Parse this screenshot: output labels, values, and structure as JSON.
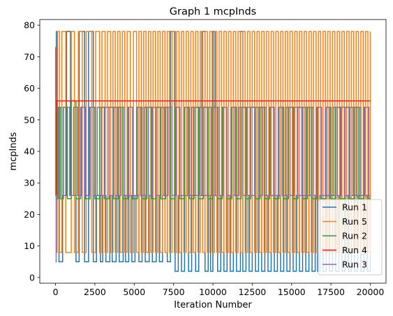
{
  "chart_data": {
    "type": "line",
    "title": "Graph 1 mcpInds",
    "xlabel": "Iteration Number",
    "ylabel": "mcpInds",
    "xlim": [
      -1000,
      21000
    ],
    "ylim": [
      -1.8,
      81.8
    ],
    "xticks": [
      0,
      2500,
      5000,
      7500,
      10000,
      12500,
      15000,
      17500,
      20000
    ],
    "xtick_labels": [
      "0",
      "2500",
      "5000",
      "7500",
      "10000",
      "12500",
      "15000",
      "17500",
      "20000"
    ],
    "yticks": [
      0,
      10,
      20,
      30,
      40,
      50,
      60,
      70,
      80
    ],
    "ytick_labels": [
      "0",
      "10",
      "20",
      "30",
      "40",
      "50",
      "60",
      "70",
      "80"
    ],
    "legend_position": "lower right",
    "grid": false,
    "series": [
      {
        "name": "Run 1",
        "color": "#1f77b4",
        "step_x": [
          0,
          50,
          120,
          220,
          450,
          700,
          950,
          1300,
          1500,
          1850,
          2100,
          2400,
          2600,
          2850,
          3000,
          3200,
          3450,
          3600,
          3850,
          4050,
          4300,
          4450,
          4650,
          4850,
          5050,
          5300,
          5500,
          5700,
          5950,
          6150,
          6400,
          6600,
          6800,
          7100,
          7300,
          7600,
          7800,
          8000,
          8200,
          8450,
          8650,
          8900,
          9100,
          9300,
          9500,
          9700,
          9850,
          10000,
          10150,
          10300,
          10500,
          10700,
          10900,
          11100,
          11300,
          11500,
          11750,
          11900,
          12100,
          12300,
          12500,
          12700,
          12900,
          13100,
          13300,
          13500,
          13700,
          13900,
          14100,
          14300,
          14500,
          14700,
          14900,
          15100,
          15300,
          15500,
          15700,
          15900,
          16100,
          16300,
          16500,
          16650,
          16800,
          17000,
          17200,
          17400,
          17600,
          17800,
          18000,
          18200,
          18400,
          18600,
          18800,
          19000,
          19200,
          19400,
          19600,
          19800,
          20000
        ],
        "step_y": [
          26,
          78,
          26,
          5,
          26,
          78,
          26,
          5,
          78,
          5,
          78,
          5,
          26,
          5,
          26,
          5,
          26,
          5,
          26,
          5,
          26,
          5,
          26,
          5,
          26,
          5,
          26,
          5,
          26,
          5,
          26,
          5,
          26,
          5,
          78,
          2,
          26,
          2,
          26,
          2,
          26,
          2,
          26,
          78,
          2,
          26,
          2,
          78,
          26,
          2,
          26,
          2,
          26,
          2,
          26,
          2,
          78,
          2,
          26,
          2,
          26,
          2,
          26,
          2,
          26,
          2,
          26,
          2,
          26,
          2,
          26,
          2,
          26,
          2,
          26,
          2,
          26,
          2,
          26,
          2,
          26,
          2,
          26,
          2,
          26,
          2,
          26,
          2,
          26,
          2,
          26,
          2,
          26,
          2,
          26,
          2,
          26,
          2,
          26
        ]
      },
      {
        "name": "Run 5",
        "color": "#ff7f0e",
        "step_x": [
          0,
          100,
          250,
          400,
          650,
          1000,
          1200,
          1450,
          1700,
          1950,
          2300,
          2550,
          2800,
          2950,
          3150,
          3300,
          3500,
          3650,
          3800,
          3950,
          4100,
          4250,
          4400,
          4550,
          4750,
          4950,
          5150,
          5300,
          5450,
          5600,
          5750,
          5900,
          6050,
          6200,
          6350,
          6500,
          6650,
          6800,
          6950,
          7100,
          7250,
          7400,
          7550,
          7700,
          7850,
          8000,
          8150,
          8300,
          8450,
          8600,
          8750,
          8900,
          9050,
          9200,
          9350,
          9500,
          9650,
          9800,
          9950,
          10100,
          10250,
          10400,
          10550,
          10700,
          10850,
          11000,
          11150,
          11300,
          11450,
          11600,
          11750,
          11900,
          12050,
          12200,
          12350,
          12500,
          12650,
          12800,
          12950,
          13100,
          13250,
          13400,
          13550,
          13700,
          13850,
          14000,
          14150,
          14300,
          14450,
          14600,
          14750,
          14900,
          15050,
          15200,
          15350,
          15500,
          15650,
          15800,
          15950,
          16100,
          16250,
          16400,
          16550,
          16700,
          16850,
          17000,
          17150,
          17300,
          17450,
          17600,
          17750,
          17900,
          18050,
          18200,
          18350,
          18500,
          18650,
          18800,
          18950,
          19100,
          19250,
          19400,
          19550,
          19700,
          19850,
          20000
        ],
        "step_y": [
          8,
          78,
          8,
          78,
          8,
          78,
          8,
          78,
          8,
          78,
          8,
          78,
          8,
          78,
          8,
          78,
          8,
          78,
          8,
          78,
          8,
          78,
          8,
          78,
          8,
          78,
          8,
          78,
          8,
          78,
          8,
          78,
          8,
          78,
          8,
          78,
          8,
          78,
          8,
          78,
          8,
          78,
          8,
          78,
          8,
          78,
          8,
          78,
          8,
          78,
          8,
          78,
          8,
          78,
          8,
          78,
          8,
          78,
          8,
          78,
          8,
          78,
          8,
          78,
          8,
          78,
          8,
          78,
          8,
          78,
          8,
          78,
          8,
          78,
          8,
          78,
          8,
          78,
          8,
          78,
          8,
          78,
          8,
          78,
          8,
          78,
          8,
          78,
          8,
          78,
          8,
          78,
          8,
          78,
          8,
          78,
          8,
          78,
          8,
          78,
          8,
          78,
          8,
          78,
          8,
          78,
          8,
          78,
          8,
          78,
          8,
          78,
          8,
          78,
          8,
          78,
          8,
          78,
          8,
          78,
          8,
          78,
          8,
          78,
          8,
          78
        ]
      },
      {
        "name": "Run 2",
        "color": "#2ca02c",
        "step_x": [
          0,
          150,
          300,
          500,
          750,
          1000,
          1300,
          1600,
          1900,
          2200,
          2500,
          2800,
          3100,
          3400,
          3700,
          4000,
          4300,
          4600,
          4900,
          5200,
          5500,
          5800,
          6100,
          6400,
          6700,
          7000,
          7300,
          7600,
          7900,
          8200,
          8500,
          8800,
          9100,
          9400,
          9700,
          10000,
          10300,
          10600,
          10900,
          11200,
          11500,
          11800,
          12100,
          12400,
          12700,
          13000,
          13300,
          13600,
          13900,
          14200,
          14500,
          14800,
          15100,
          15400,
          15700,
          16000,
          16300,
          16600,
          16900,
          17200,
          17500,
          17800,
          18100,
          18400,
          18700,
          19000,
          19300,
          19600,
          19900,
          20000
        ],
        "step_y": [
          25,
          54,
          25,
          54,
          25,
          56,
          25,
          54,
          25,
          54,
          25,
          54,
          25,
          54,
          25,
          54,
          25,
          54,
          25,
          54,
          25,
          54,
          25,
          54,
          25,
          54,
          25,
          54,
          25,
          54,
          25,
          54,
          25,
          54,
          25,
          54,
          25,
          54,
          25,
          54,
          25,
          54,
          25,
          54,
          25,
          54,
          25,
          54,
          25,
          54,
          25,
          54,
          25,
          54,
          25,
          54,
          25,
          54,
          25,
          54,
          25,
          54,
          25,
          54,
          25,
          54,
          25,
          54,
          25,
          25
        ]
      },
      {
        "name": "Run 4",
        "color": "#d62728",
        "step_x": [
          0,
          20,
          60,
          20000
        ],
        "step_y": [
          73,
          26,
          56,
          56
        ]
      },
      {
        "name": "Run 3",
        "color": "#9467bd",
        "step_x": [
          0,
          40,
          200,
          400,
          650,
          900,
          1150,
          1400,
          1650,
          1900,
          2150,
          2400,
          2650,
          2900,
          3150,
          3400,
          3650,
          3900,
          4150,
          4400,
          4650,
          4900,
          5150,
          5400,
          5650,
          5900,
          6150,
          6400,
          6650,
          6900,
          7150,
          7400,
          7650,
          7900,
          8150,
          8400,
          8650,
          8900,
          9150,
          9400,
          9650,
          9900,
          10150,
          10400,
          10650,
          10900,
          11150,
          11400,
          11650,
          11900,
          12150,
          12400,
          12650,
          12900,
          13150,
          13400,
          13650,
          13900,
          14150,
          14400,
          14650,
          14900,
          15150,
          15400,
          15650,
          15900,
          16150,
          16400,
          16650,
          16900,
          17150,
          17400,
          17650,
          17900,
          18150,
          18400,
          18650,
          18900,
          19150,
          19400,
          19650,
          19900,
          20000
        ],
        "step_y": [
          5,
          26,
          54,
          26,
          54,
          26,
          54,
          26,
          54,
          26,
          54,
          26,
          54,
          26,
          54,
          26,
          54,
          26,
          54,
          26,
          54,
          26,
          54,
          26,
          54,
          26,
          54,
          26,
          54,
          26,
          54,
          26,
          54,
          26,
          54,
          26,
          54,
          26,
          54,
          26,
          54,
          26,
          54,
          26,
          54,
          26,
          54,
          26,
          54,
          26,
          54,
          26,
          54,
          26,
          54,
          26,
          54,
          26,
          54,
          26,
          54,
          26,
          54,
          26,
          54,
          26,
          54,
          26,
          54,
          26,
          54,
          26,
          54,
          26,
          54,
          26,
          54,
          26,
          54,
          26,
          54,
          26,
          26
        ]
      }
    ]
  }
}
